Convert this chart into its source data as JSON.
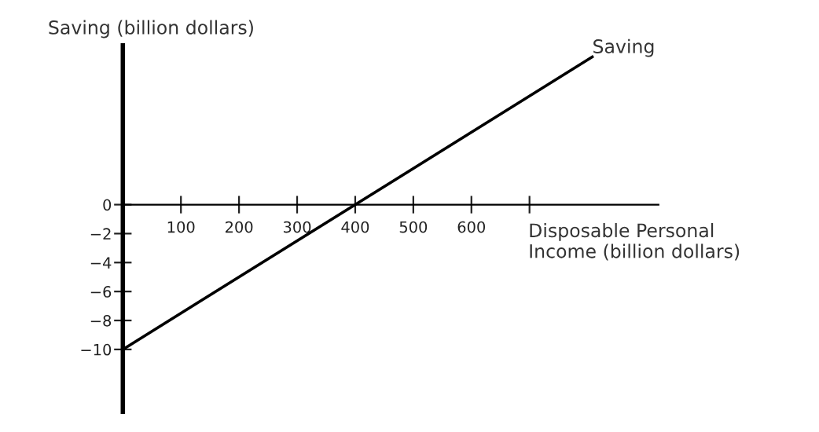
{
  "chart_data": {
    "type": "line",
    "xlabel": "Disposable Personal\nIncome (billion dollars)",
    "ylabel": "Saving (billion dollars)",
    "series": [
      {
        "name": "Saving",
        "color": "#000000",
        "x": [
          0,
          808
        ],
        "values": [
          -10,
          10.2
        ]
      }
    ],
    "xlim": [
      0,
      922
    ],
    "ylim": [
      -14.3,
      11
    ],
    "xticks": [
      {
        "value": 100,
        "label": "100"
      },
      {
        "value": 200,
        "label": "200"
      },
      {
        "value": 300,
        "label": "300"
      },
      {
        "value": 400,
        "label": "400"
      },
      {
        "value": 500,
        "label": "500"
      },
      {
        "value": 600,
        "label": "600"
      },
      {
        "value": 700,
        "label": null
      }
    ],
    "yticks": [
      0,
      {
        "value": -2,
        "label": "−2"
      },
      {
        "value": -4,
        "label": "−4"
      },
      {
        "value": -6,
        "label": "−6"
      },
      {
        "value": -8,
        "label": "−8"
      },
      {
        "value": -10,
        "label": "−10"
      }
    ],
    "grid": false,
    "legend": false
  }
}
